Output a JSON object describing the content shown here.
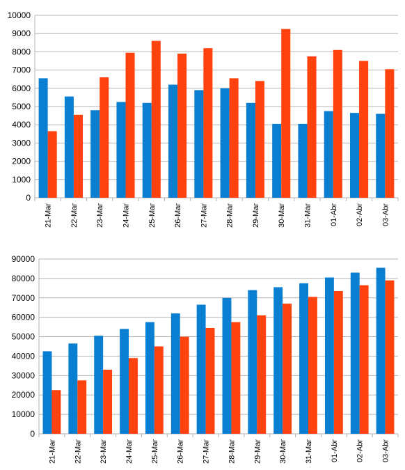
{
  "colors": {
    "series_a": "#0a7fd1",
    "series_b": "#ff420e",
    "grid": "#b3b3b3"
  },
  "chart_data": [
    {
      "type": "bar",
      "title": "",
      "xlabel": "",
      "ylabel": "",
      "ylim": [
        0,
        10000
      ],
      "yticks": [
        0,
        1000,
        2000,
        3000,
        4000,
        5000,
        6000,
        7000,
        8000,
        9000,
        10000
      ],
      "grid": true,
      "legend": "none",
      "categories": [
        "21-Mar",
        "22-Mar",
        "23-Mar",
        "24-Mar",
        "25-Mar",
        "26-Mar",
        "27-Mar",
        "28-Mar",
        "29-Mar",
        "30-Mar",
        "31-Mar",
        "01-Abr",
        "02-Abr",
        "03-Abr"
      ],
      "series": [
        {
          "color": "#0a7fd1",
          "values": [
            6550,
            5550,
            4800,
            5250,
            5200,
            6200,
            5900,
            6000,
            5200,
            4050,
            4050,
            4750,
            4650,
            4600
          ]
        },
        {
          "color": "#ff420e",
          "values": [
            3650,
            4550,
            6600,
            7950,
            8600,
            7900,
            8200,
            6550,
            6400,
            9250,
            7750,
            8100,
            7500,
            7050
          ]
        }
      ]
    },
    {
      "type": "bar",
      "title": "",
      "xlabel": "",
      "ylabel": "",
      "ylim": [
        0,
        90000
      ],
      "yticks": [
        0,
        10000,
        20000,
        30000,
        40000,
        50000,
        60000,
        70000,
        80000,
        90000
      ],
      "grid": true,
      "legend": "none",
      "categories": [
        "21-Mar",
        "22-Mar",
        "23-Mar",
        "24-Mar",
        "25-Mar",
        "26-Mar",
        "27-Mar",
        "28-Mar",
        "29-Mar",
        "30-Mar",
        "31-Mar",
        "01-Abr",
        "02-Abr",
        "03-Abr"
      ],
      "series": [
        {
          "color": "#0a7fd1",
          "values": [
            42500,
            46500,
            50500,
            54000,
            57500,
            62000,
            66500,
            70000,
            74000,
            75500,
            77500,
            80500,
            83000,
            85500
          ]
        },
        {
          "color": "#ff420e",
          "values": [
            22500,
            27500,
            33000,
            39000,
            45000,
            50000,
            54500,
            57500,
            61000,
            67000,
            70500,
            73500,
            76500,
            79000
          ]
        }
      ]
    }
  ]
}
